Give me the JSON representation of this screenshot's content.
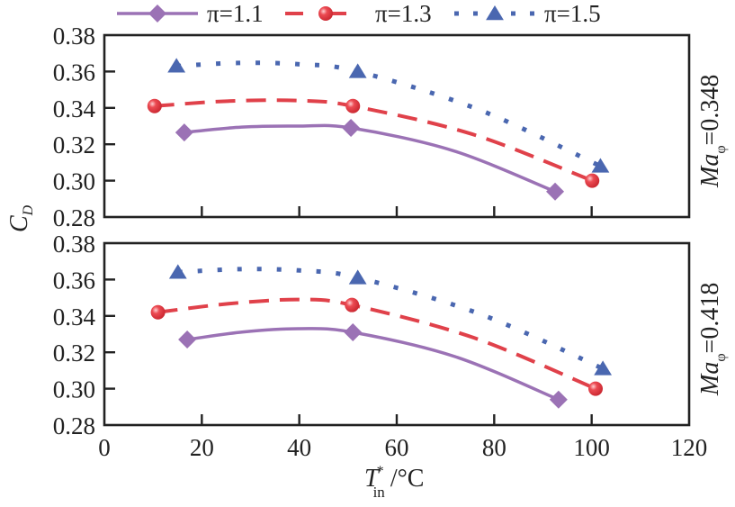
{
  "chart_data": {
    "type": "line",
    "xlabel": {
      "main": "T",
      "sup": "*",
      "sub": "in",
      "unit": "/°C"
    },
    "ylabel": {
      "main": "C",
      "sub": "D"
    },
    "xlim": [
      0,
      120
    ],
    "ylim": [
      0.28,
      0.38
    ],
    "xticks": [
      "0",
      "20",
      "40",
      "60",
      "80",
      "100",
      "120"
    ],
    "xtick_values": [
      0,
      20,
      40,
      60,
      80,
      100,
      120
    ],
    "yticks": [
      "0.28",
      "0.30",
      "0.32",
      "0.34",
      "0.36",
      "0.38"
    ],
    "ytick_values": [
      0.28,
      0.3,
      0.32,
      0.34,
      0.36,
      0.38
    ],
    "legend": {
      "placement": "top",
      "entries": [
        {
          "label": "π=1.1",
          "series": 0
        },
        {
          "label": "π=1.3",
          "series": 1
        },
        {
          "label": "π=1.5",
          "series": 2
        }
      ]
    },
    "series_style": [
      {
        "name": "π=1.1",
        "color": "#9b72b5",
        "dash": "solid",
        "marker": "diamond"
      },
      {
        "name": "π=1.3",
        "color": "#e0414a",
        "dash": "dashed",
        "marker": "circle"
      },
      {
        "name": "π=1.5",
        "color": "#4a67b0",
        "dash": "dotted",
        "marker": "triangle"
      }
    ],
    "panels": [
      {
        "label": {
          "main": "Ma",
          "sub": "φ",
          "value": "=0.348"
        },
        "series": [
          {
            "name": "π=1.1",
            "x": [
              16.4,
              50.6,
              92.5
            ],
            "y": [
              0.3265,
              0.329,
              0.294
            ],
            "fit_peak": 0.33
          },
          {
            "name": "π=1.3",
            "x": [
              10.3,
              51.0,
              100.1
            ],
            "y": [
              0.341,
              0.341,
              0.3
            ],
            "fit_peak": 0.344
          },
          {
            "name": "π=1.5",
            "x": [
              14.8,
              52.0,
              101.8
            ],
            "y": [
              0.363,
              0.36,
              0.308
            ],
            "fit_peak": 0.364
          }
        ]
      },
      {
        "label": {
          "main": "Ma",
          "sub": "φ",
          "value": "=0.418"
        },
        "series": [
          {
            "name": "π=1.1",
            "x": [
              17.0,
              51.0,
              93.2
            ],
            "y": [
              0.327,
              0.331,
              0.294
            ],
            "fit_peak": 0.333
          },
          {
            "name": "π=1.3",
            "x": [
              11.0,
              50.8,
              100.8
            ],
            "y": [
              0.342,
              0.346,
              0.3
            ],
            "fit_peak": 0.349
          },
          {
            "name": "π=1.5",
            "x": [
              15.1,
              52.0,
              102.3
            ],
            "y": [
              0.364,
              0.361,
              0.311
            ],
            "fit_peak": 0.365
          }
        ]
      }
    ]
  }
}
